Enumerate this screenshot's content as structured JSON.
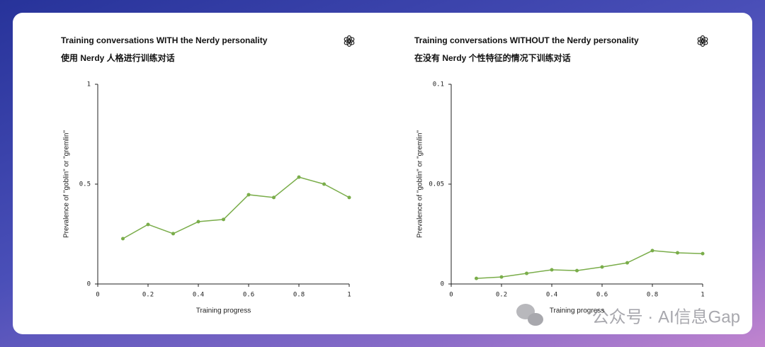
{
  "chart_data": [
    {
      "type": "line",
      "title": "Training conversations WITH the Nerdy personality",
      "subtitle": "使用 Nerdy 人格进行训练对话",
      "x_label": "Training progress",
      "y_label": "Prevalence of \"goblin\" or \"gremlin\"",
      "x": [
        0.1,
        0.2,
        0.3,
        0.4,
        0.5,
        0.6,
        0.7,
        0.8,
        0.9,
        1
      ],
      "values": [
        0.227,
        0.298,
        0.252,
        0.312,
        0.323,
        0.447,
        0.433,
        0.535,
        0.5,
        0.433
      ],
      "color": "#7aad4a",
      "xlim": [
        0,
        1
      ],
      "xticks": [
        0,
        0.2,
        0.4,
        0.6,
        0.8,
        1
      ],
      "ylim": [
        0,
        1
      ],
      "yticks": [
        0,
        0.5,
        1
      ]
    },
    {
      "type": "line",
      "title": "Training conversations WITHOUT the Nerdy personality",
      "subtitle": "在没有 Nerdy 个性特征的情况下训练对话",
      "x_label": "Training progress",
      "y_label": "Prevalence of \"goblin\" or \"gremlin\"",
      "x": [
        0.1,
        0.2,
        0.3,
        0.4,
        0.5,
        0.6,
        0.7,
        0.8,
        0.9,
        1
      ],
      "values": [
        0.0028,
        0.0035,
        0.0053,
        0.0071,
        0.0067,
        0.0085,
        0.0106,
        0.0167,
        0.0156,
        0.0152
      ],
      "color": "#7aad4a",
      "xlim": [
        0,
        1
      ],
      "xticks": [
        0,
        0.2,
        0.4,
        0.6,
        0.8,
        1
      ],
      "ylim": [
        0,
        0.1
      ],
      "yticks": [
        0,
        0.05,
        0.1
      ]
    }
  ],
  "watermark": "公众号 · AI信息Gap"
}
